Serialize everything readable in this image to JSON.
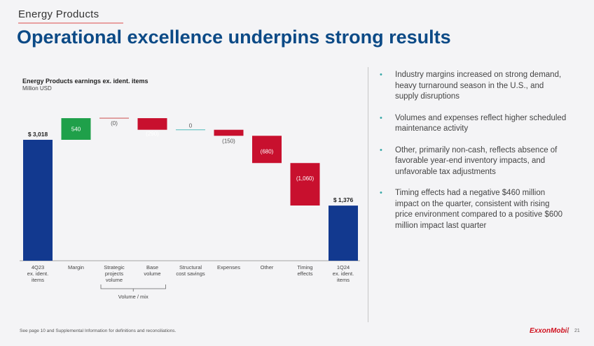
{
  "header": {
    "section": "Energy Products",
    "title": "Operational excellence underpins strong results"
  },
  "chart_data": {
    "type": "waterfall",
    "title": "Energy Products earnings ex. ident. items",
    "subtitle": "Million USD",
    "categories": [
      "4Q23 ex. ident. items",
      "Margin",
      "Strategic projects volume",
      "Base volume",
      "Structural cost savings",
      "Expenses",
      "Other",
      "Timing effects",
      "1Q24 ex. ident. items"
    ],
    "category_lines": [
      [
        "4Q23",
        "ex. ident.",
        "items"
      ],
      [
        "Margin"
      ],
      [
        "Strategic",
        "projects",
        "volume"
      ],
      [
        "Base",
        "volume"
      ],
      [
        "Structural",
        "cost savings"
      ],
      [
        "Expenses"
      ],
      [
        "Other"
      ],
      [
        "Timing",
        "effects"
      ],
      [
        "1Q24",
        "ex. ident.",
        "items"
      ]
    ],
    "values": [
      3018,
      540,
      0,
      -290,
      0,
      -150,
      -680,
      -1060,
      1376
    ],
    "kinds": [
      "total",
      "delta",
      "delta",
      "delta",
      "delta",
      "delta",
      "delta",
      "delta",
      "total"
    ],
    "labels": [
      "$ 3,018",
      "540",
      "(0)",
      "(290)",
      "0",
      "(150)",
      "(680)",
      "(1,060)",
      "$ 1,376"
    ],
    "group": {
      "label": "Volume / mix",
      "from": 2,
      "to": 3
    },
    "colors": {
      "total": "#12398f",
      "increase": "#1fa04a",
      "decrease": "#c8102e",
      "neutral_line": "#62c1c1"
    },
    "grid": false,
    "legend": "none"
  },
  "bullets": [
    "Industry margins increased on strong demand, heavy turnaround season in the U.S., and supply disruptions",
    "Volumes and expenses reflect higher scheduled maintenance activity",
    "Other, primarily non-cash, reflects absence of favorable year-end inventory impacts, and unfavorable tax adjustments",
    "Timing effects had a negative $460 million impact on the quarter, consistent with rising price environment compared to a positive $600 million impact last quarter"
  ],
  "footer": {
    "note": "See page 10 and Supplemental Information for definitions and reconciliations.",
    "logo": "ExxonMobil",
    "separator": "|",
    "page": "21"
  }
}
